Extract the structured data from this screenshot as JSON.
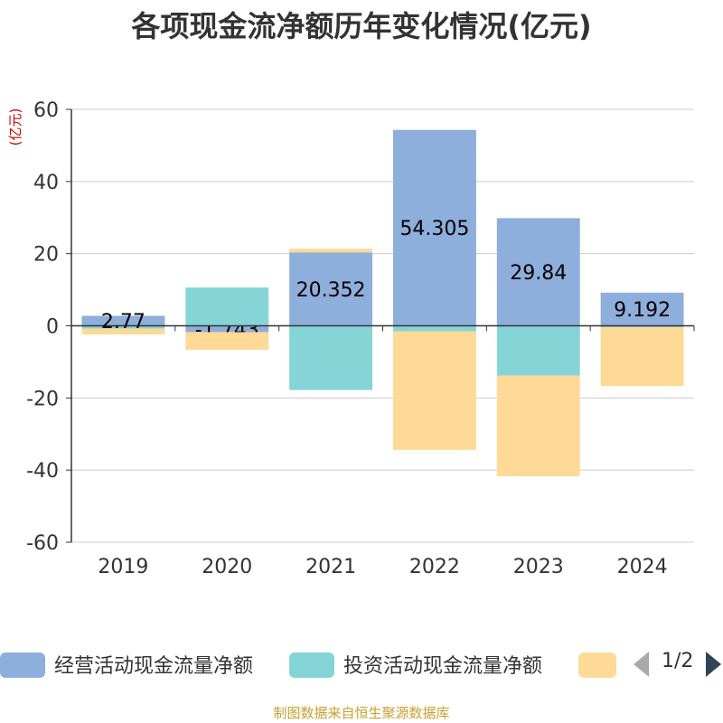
{
  "title": "各项现金流净额历年变化情况(亿元)",
  "source": "制图数据来自恒生聚源数据库",
  "colors": {
    "operating": "#8eaedb",
    "investing": "#85d5d7",
    "financing": "#ffd996",
    "axis": "#333333",
    "grid": "#cccccc",
    "unit": "#cc0000",
    "source": "#c8a030",
    "pager_active": "#2f4554",
    "pager_inactive": "#aaaaaa"
  },
  "legend": {
    "items": [
      "经营活动现金流量净额",
      "投资活动现金流量净额",
      ""
    ],
    "page": "1/2"
  },
  "chart_data": {
    "type": "bar",
    "stacked": true,
    "ylabel": "(亿元)",
    "ylim": [
      -60,
      60
    ],
    "yticks": [
      60,
      40,
      20,
      0,
      -20,
      -40,
      -60
    ],
    "categories": [
      "2019",
      "2020",
      "2021",
      "2022",
      "2023",
      "2024"
    ],
    "series": [
      {
        "name": "经营活动现金流量净额",
        "values": [
          2.77,
          -1.743,
          20.352,
          54.305,
          29.84,
          9.192
        ]
      },
      {
        "name": "投资活动现金流量净额",
        "values": [
          -0.8,
          10.6,
          -17.8,
          -1.5,
          -13.8,
          -0.4
        ]
      },
      {
        "name": "",
        "values": [
          -1.6,
          -4.9,
          1.0,
          -32.9,
          -27.9,
          -16.3
        ]
      }
    ],
    "data_labels": [
      "2.77",
      "-1.743",
      "20.352",
      "54.305",
      "29.84",
      "9.192"
    ]
  }
}
